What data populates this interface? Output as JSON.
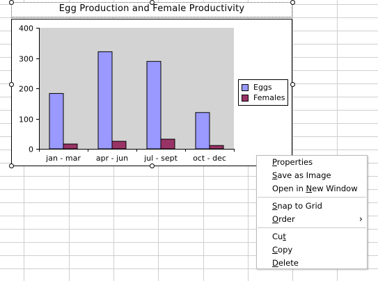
{
  "chart": {
    "title": "Egg Production and Female Productivity"
  },
  "chart_data": {
    "type": "bar",
    "title": "Egg Production and Female Productivity",
    "categories": [
      "jan - mar",
      "apr - jun",
      "jul - sept",
      "oct - dec"
    ],
    "series": [
      {
        "name": "Eggs",
        "values": [
          183,
          321,
          289,
          120
        ],
        "color": "#9999ff"
      },
      {
        "name": "Females",
        "values": [
          16,
          25,
          32,
          11
        ],
        "color": "#993366"
      }
    ],
    "ylim": [
      0,
      400
    ],
    "yticks": [
      "0",
      "100",
      "200",
      "300",
      "400"
    ],
    "plot_background": "#d3d3d3",
    "legend": "right",
    "grid": false
  },
  "context_menu": {
    "items": [
      {
        "label": "Properties",
        "mnemonic": "P"
      },
      {
        "label": "Save as Image",
        "mnemonic": "S"
      },
      {
        "label": "Open in New Window",
        "mnemonic": "N"
      },
      {
        "label": "Snap to Grid",
        "mnemonic": "S"
      },
      {
        "label": "Order",
        "mnemonic": "O",
        "submenu": true,
        "arrow": "›"
      },
      {
        "label": "Cut",
        "mnemonic": "t"
      },
      {
        "label": "Copy",
        "mnemonic": "C"
      },
      {
        "label": "Delete",
        "mnemonic": "D"
      }
    ]
  }
}
